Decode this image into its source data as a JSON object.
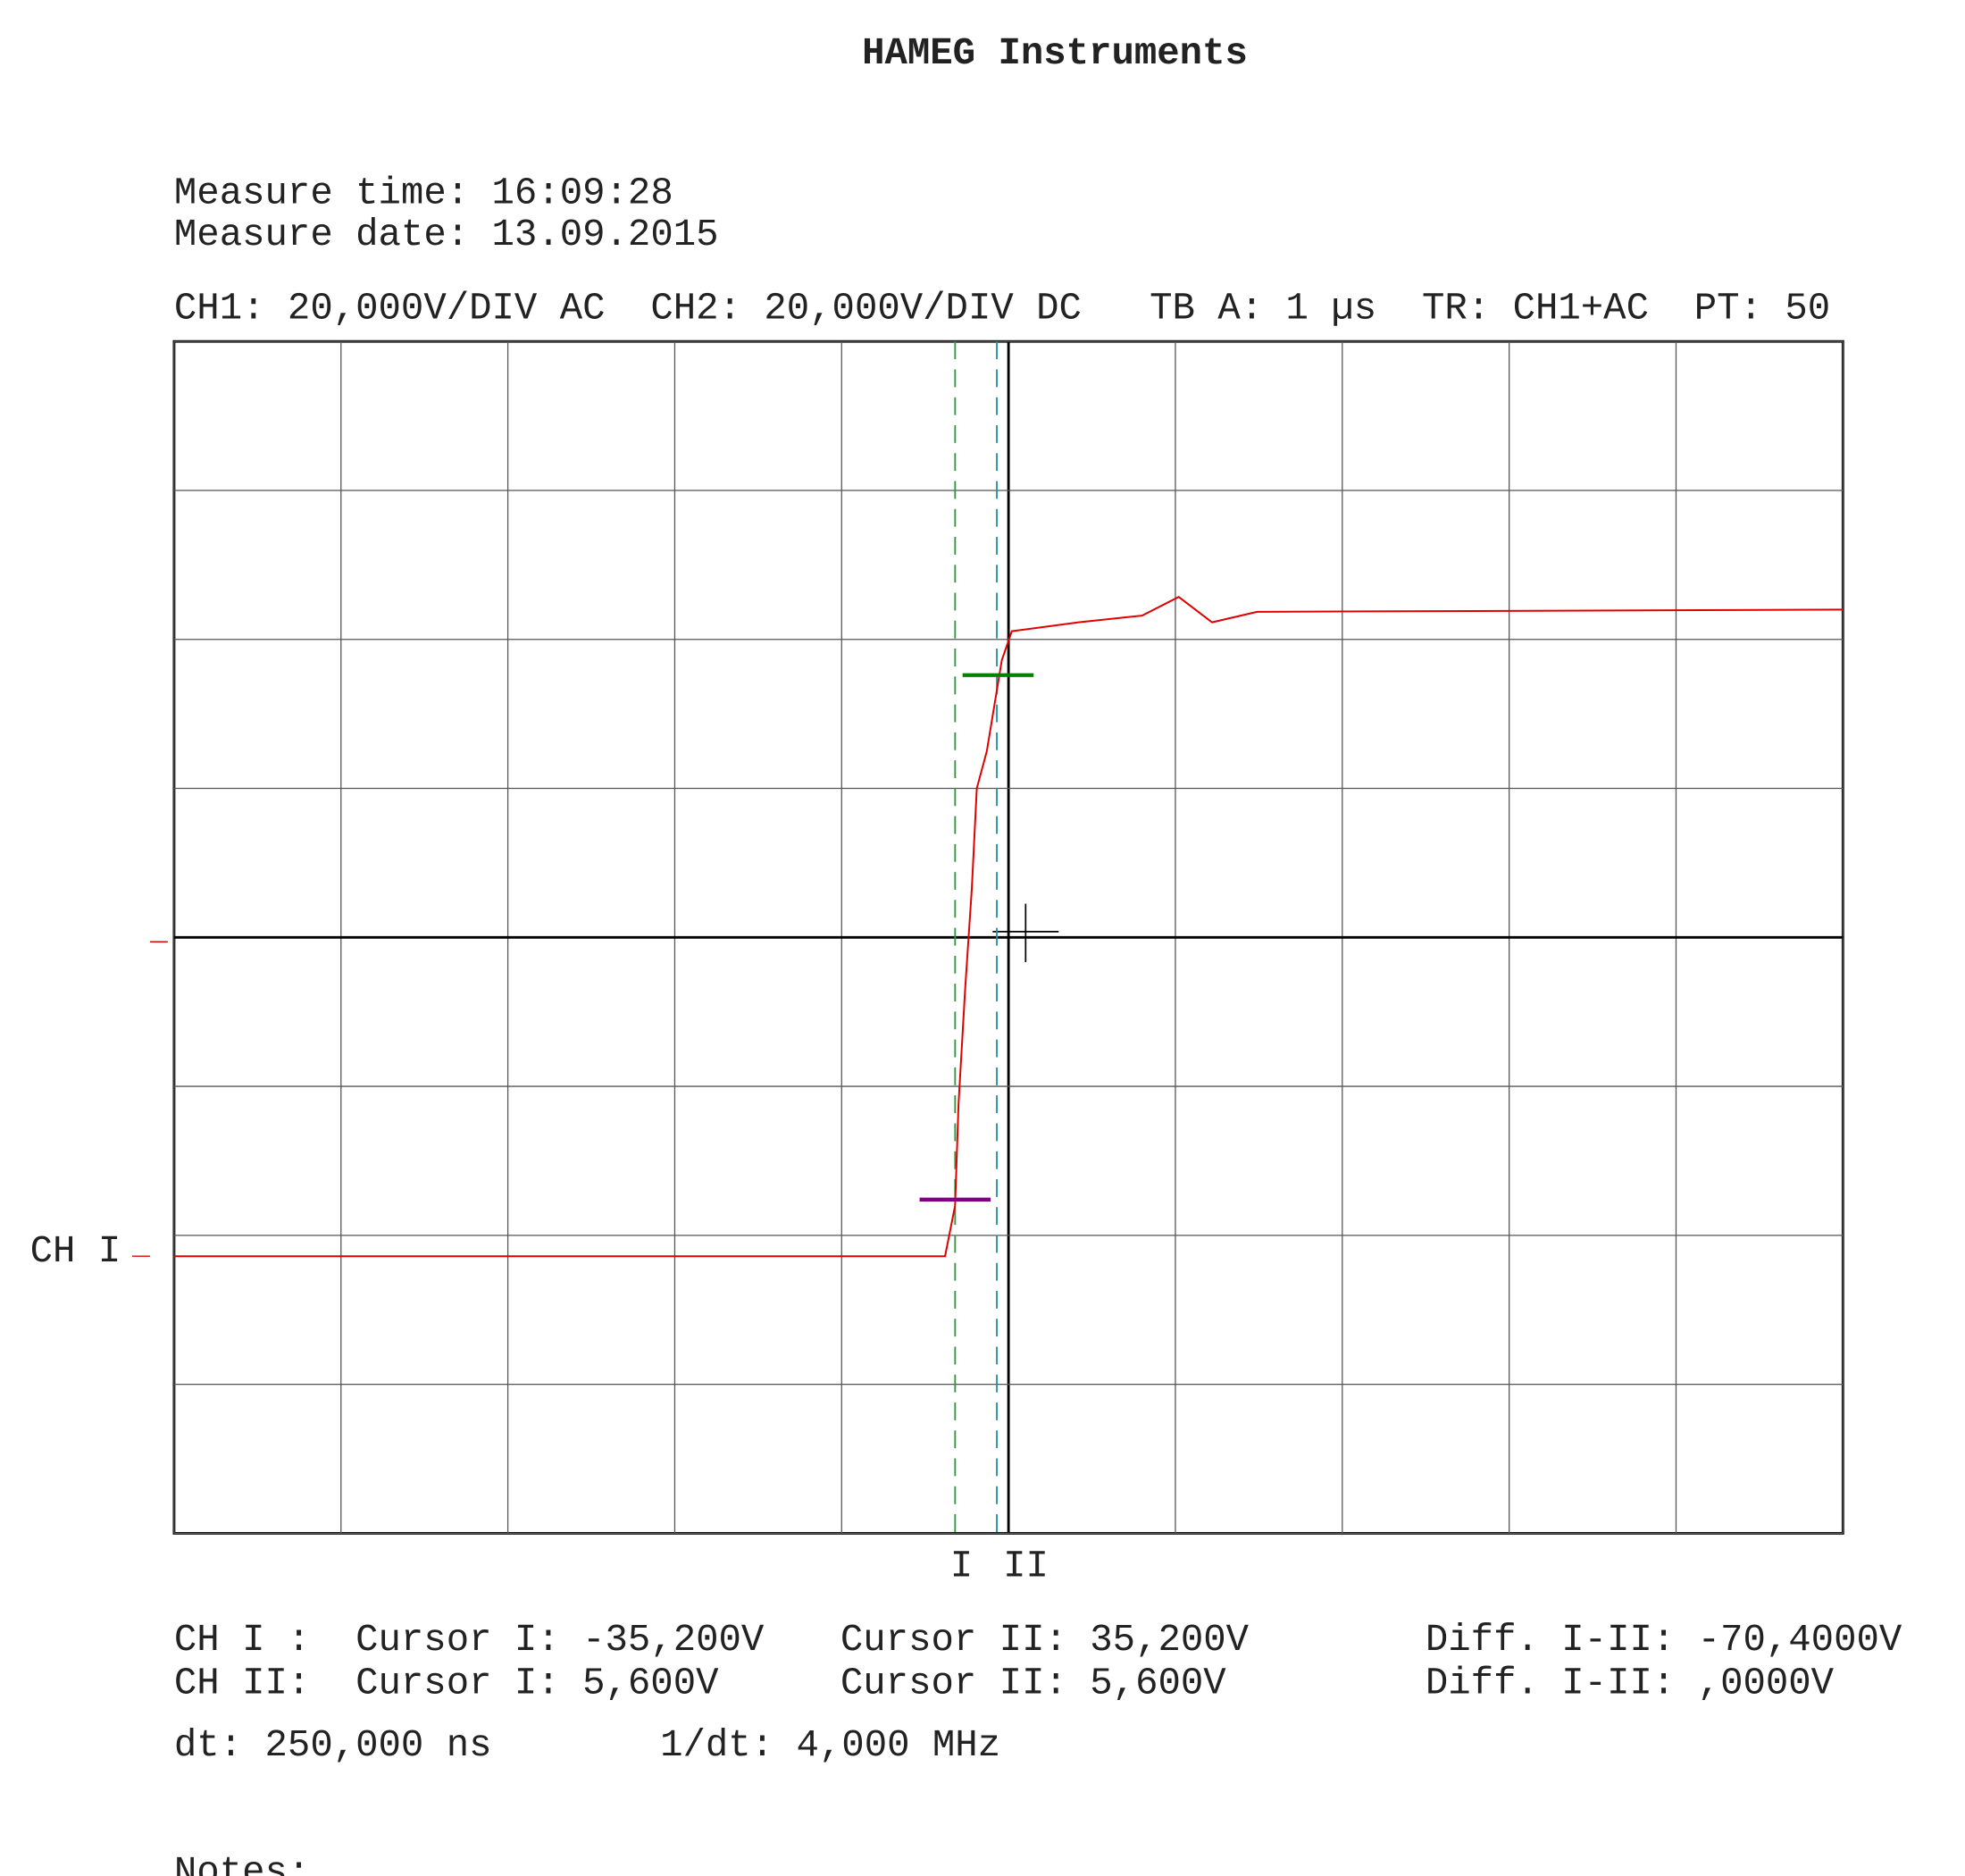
{
  "chart_data": {
    "type": "line",
    "title": "HAMEG Instruments",
    "measure_time": "Measure time: 16:09:28",
    "measure_date": "Measure date: 13.09.2015",
    "settings": "CH1: 20,000V/DIV AC  CH2: 20,000V/DIV DC   TB A: 1 µs  TR: CH1+AC  PT: 50",
    "channel_marker": "CH I",
    "x": [
      0,
      4.62,
      4.68,
      4.7,
      4.74,
      4.78,
      4.81,
      4.87,
      4.96,
      5.02,
      5.42,
      5.8,
      6.02,
      6.22,
      6.49,
      10
    ],
    "series": [
      {
        "name": "CH I",
        "color": "#e00000",
        "values": [
          -42.8,
          -42.8,
          -36,
          -22.4,
          -7,
          6.6,
          20,
          25,
          37.2,
          41.1,
          42.3,
          43.2,
          45.7,
          42.3,
          43.7,
          44
        ]
      }
    ],
    "xlim": [
      0,
      10
    ],
    "ylim": [
      -80,
      80
    ],
    "xticks": [
      0,
      1,
      2,
      3,
      4,
      5,
      6,
      7,
      8,
      9,
      10
    ],
    "yticks": [
      -80,
      -60,
      -40,
      -20,
      0,
      20,
      40,
      60,
      80
    ],
    "grid": true,
    "x_cursors": [
      {
        "value": 4.68,
        "label": "I",
        "color": "#2a9a3a"
      },
      {
        "value": 4.93,
        "label": "II",
        "color": "#2a8fa0"
      }
    ],
    "y_cursors": [
      {
        "value": -35.2,
        "label": "-35,200V",
        "color": "#800080"
      },
      {
        "value": 35.2,
        "label": "35,200V",
        "color": "#008000"
      }
    ],
    "readout": [
      [
        "CH I :",
        "Cursor I: -35,200V",
        "Cursor II: 35,200V",
        "Diff. I-II: -70,4000V"
      ],
      [
        "CH II:",
        "Cursor I: 5,600V",
        "Cursor II: 5,600V",
        "Diff. I-II: ,0000V"
      ]
    ],
    "dt": "dt: 250,000 ns",
    "inv_dt": "1/dt: 4,000 MHz",
    "notes": "Notes:"
  }
}
